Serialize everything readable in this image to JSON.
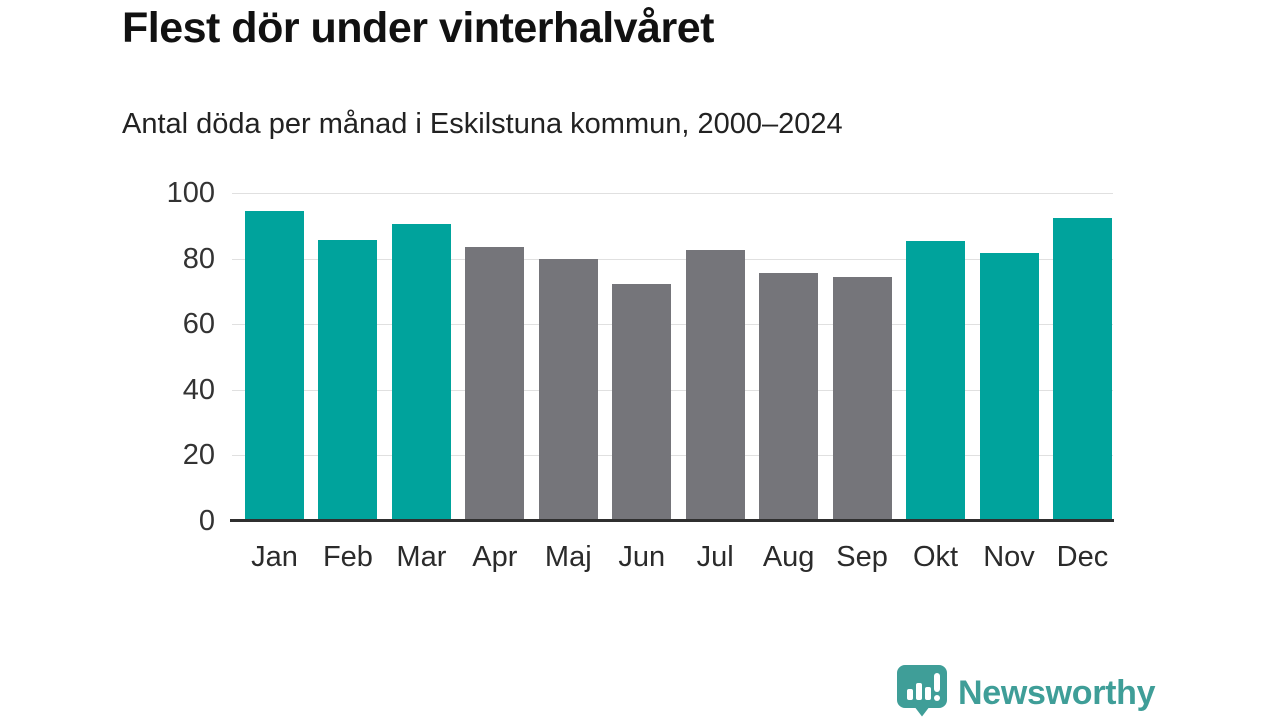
{
  "header": {
    "title": "Flest dör under vinterhalvåret",
    "subtitle": "Antal döda per månad i Eskilstuna kommun, 2000–2024"
  },
  "chart_data": {
    "type": "bar",
    "title": "Flest dör under vinterhalvåret",
    "subtitle": "Antal döda per månad i Eskilstuna kommun, 2000–2024",
    "categories": [
      "Jan",
      "Feb",
      "Mar",
      "Apr",
      "Maj",
      "Jun",
      "Jul",
      "Aug",
      "Sep",
      "Okt",
      "Nov",
      "Dec"
    ],
    "values": [
      94.5,
      85.8,
      90.6,
      83.4,
      79.9,
      72.3,
      82.6,
      75.5,
      74.3,
      85.5,
      81.6,
      92.4
    ],
    "bar_color_keys": [
      "winter",
      "winter",
      "winter",
      "summer",
      "summer",
      "summer",
      "summer",
      "summer",
      "summer",
      "winter",
      "winter",
      "winter"
    ],
    "colors": {
      "winter": "#00a39c",
      "summer": "#75757a"
    },
    "xlabel": "",
    "ylabel": "",
    "ylim": [
      0,
      100
    ],
    "yticks": [
      0,
      20,
      40,
      60,
      80,
      100
    ],
    "grid": true,
    "legend": "none"
  },
  "footer": {
    "brand": "Newsworthy",
    "brand_color": "#3f9e98",
    "logo_icon": "newsworthy-speech-bubble-chart-icon"
  }
}
